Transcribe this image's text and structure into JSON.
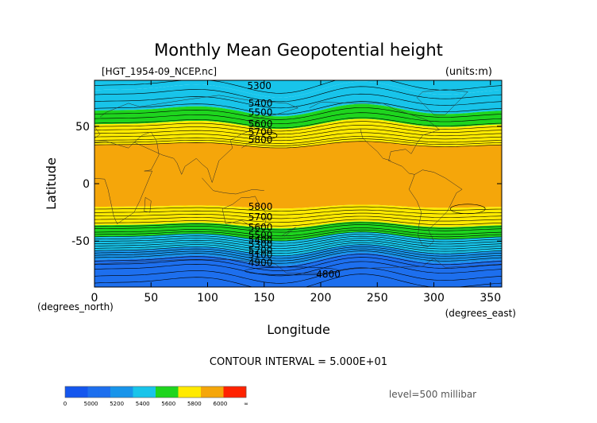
{
  "chart_data": {
    "type": "heatmap",
    "title": "Monthly Mean Geopotential height",
    "file_label": "[HGT_1954-09_NCEP.nc]",
    "units_label": "(units:m)",
    "xlabel": "Longitude",
    "ylabel": "Latitude",
    "x_unit_label": "(degrees_east)",
    "y_unit_label": "(degrees_north)",
    "xlim": [
      0,
      360
    ],
    "ylim": [
      -90,
      90
    ],
    "x_ticks": [
      0,
      50,
      100,
      150,
      200,
      250,
      300,
      350
    ],
    "y_ticks": [
      50,
      0,
      -50
    ],
    "contour_interval_label": "CONTOUR INTERVAL = 5.000E+01",
    "level_label": "level=500 millibar",
    "contour_labels": [
      {
        "text": "5300",
        "lon": 135,
        "lat": 85
      },
      {
        "text": "5400",
        "lon": 136,
        "lat": 70
      },
      {
        "text": "5500",
        "lon": 136,
        "lat": 62
      },
      {
        "text": "5600",
        "lon": 136,
        "lat": 52
      },
      {
        "text": "5700",
        "lon": 136,
        "lat": 45
      },
      {
        "text": "5800",
        "lon": 136,
        "lat": 38
      },
      {
        "text": "5800",
        "lon": 136,
        "lat": -20
      },
      {
        "text": "5700",
        "lon": 136,
        "lat": -29
      },
      {
        "text": "5600",
        "lon": 136,
        "lat": -38
      },
      {
        "text": "5500",
        "lon": 136,
        "lat": -45
      },
      {
        "text": "5400",
        "lon": 136,
        "lat": -49
      },
      {
        "text": "5300",
        "lon": 136,
        "lat": -53
      },
      {
        "text": "5200",
        "lon": 136,
        "lat": -58
      },
      {
        "text": "5100",
        "lon": 136,
        "lat": -62
      },
      {
        "text": "4900",
        "lon": 136,
        "lat": -69
      },
      {
        "text": "4800",
        "lon": 196,
        "lat": -79
      }
    ],
    "bands": [
      {
        "lat": [
          82,
          90
        ],
        "value_range": [
          5300,
          5400
        ],
        "color": "#18c4ea"
      },
      {
        "lat": [
          64,
          82
        ],
        "value_range": [
          5200,
          5400
        ],
        "color": "#18c4ea"
      },
      {
        "lat": [
          52,
          64
        ],
        "value_range": [
          5400,
          5600
        ],
        "color": "#1ed51e"
      },
      {
        "lat": [
          34,
          52
        ],
        "value_range": [
          5600,
          5800
        ],
        "color": "#ffea00"
      },
      {
        "lat": [
          -20,
          34
        ],
        "value_range": [
          5800,
          6000
        ],
        "color": "#f5a60a"
      },
      {
        "lat": [
          -36,
          -20
        ],
        "value_range": [
          5600,
          5800
        ],
        "color": "#ffea00"
      },
      {
        "lat": [
          -46,
          -36
        ],
        "value_range": [
          5400,
          5600
        ],
        "color": "#1ed51e"
      },
      {
        "lat": [
          -58,
          -46
        ],
        "value_range": [
          5200,
          5400
        ],
        "color": "#18c4ea"
      },
      {
        "lat": [
          -66,
          -58
        ],
        "value_range": [
          5000,
          5200
        ],
        "color": "#1894ea"
      },
      {
        "lat": [
          -90,
          -66
        ],
        "value_range": [
          0,
          5000
        ],
        "color": "#1d6fee"
      }
    ],
    "colorbar": {
      "labels": [
        "0",
        "5000",
        "5200",
        "5400",
        "5600",
        "5800",
        "6000",
        "∞"
      ],
      "colors": [
        "#1456ee",
        "#1456ee",
        "#1d6fee",
        "#1d6fee",
        "#1894ea",
        "#1894ea",
        "#18c4ea",
        "#18c4ea",
        "#1ed51e",
        "#1ed51e",
        "#ffea00",
        "#ffea00",
        "#f5a60a",
        "#f5a60a",
        "#ff2200",
        "#ff2200"
      ]
    },
    "grid": false,
    "legend": "bottom-left"
  }
}
